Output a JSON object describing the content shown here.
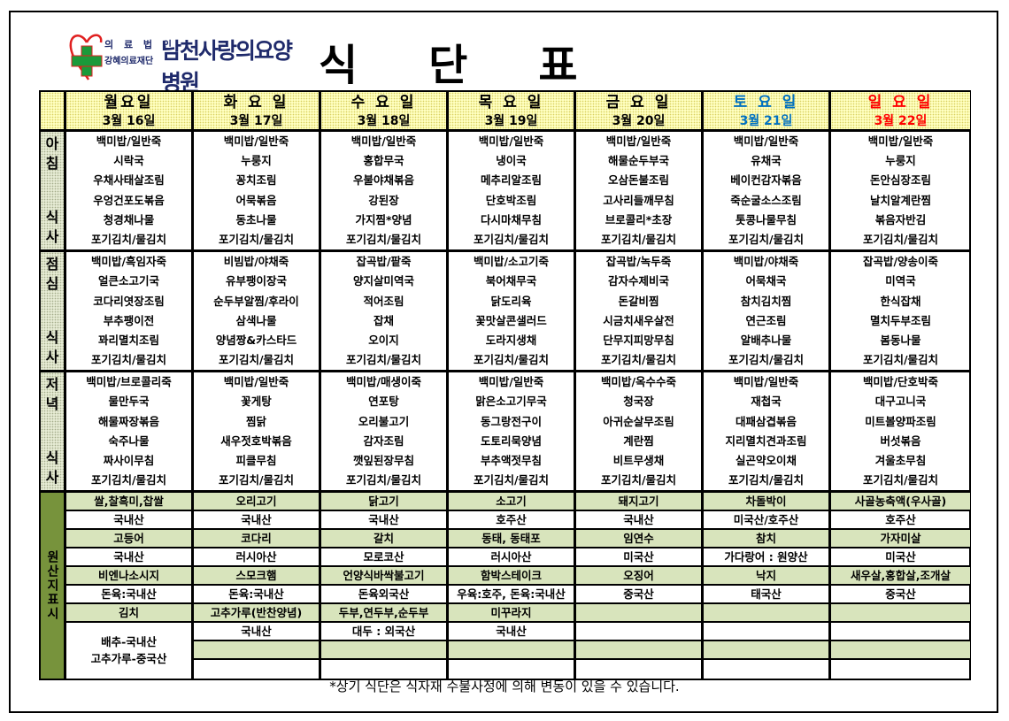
{
  "logo": {
    "org_line1": "의 료 법 인",
    "org_line2": "강혜의료재단",
    "hospital": "남천사랑의요양병원",
    "heart_color": "#e02020",
    "cross_color": "#1a9a3a"
  },
  "title": [
    "식",
    "단",
    "표"
  ],
  "colors": {
    "saturday": "#0070c0",
    "sunday": "#ff0000",
    "origin_label_bg": "#77933c",
    "origin_item_bg": "#d8e4bc",
    "header_bg": "#ffffc0"
  },
  "days": [
    {
      "name": "월요일",
      "date": "3월 16일",
      "color": "#000000"
    },
    {
      "name": "화 요 일",
      "date": "3월 17일",
      "color": "#000000"
    },
    {
      "name": "수 요 일",
      "date": "3월 18일",
      "color": "#000000"
    },
    {
      "name": "목 요 일",
      "date": "3월 19일",
      "color": "#000000"
    },
    {
      "name": "금 요 일",
      "date": "3월 20일",
      "color": "#000000"
    },
    {
      "name": "토 요 일",
      "date": "3월 21일",
      "color": "#0070c0"
    },
    {
      "name": "일 요 일",
      "date": "3월 22일",
      "color": "#ff0000"
    }
  ],
  "meals": [
    {
      "label": [
        "아",
        "침",
        "식",
        "사"
      ],
      "menu": [
        [
          "백미밥/일반죽",
          "시락국",
          "우채사태살조림",
          "우엉건포도볶음",
          "청경채나물",
          "포기김치/물김치"
        ],
        [
          "백미밥/일반죽",
          "누룽지",
          "꽁치조림",
          "어묵볶음",
          "동초나물",
          "포기김치/물김치"
        ],
        [
          "백미밥/일반죽",
          "홍합무국",
          "우불야채볶음",
          "강된장",
          "가지찜*양념",
          "포기김치/물김치"
        ],
        [
          "백미밥/일반죽",
          "냉이국",
          "메추리알조림",
          "단호박조림",
          "다시마채무침",
          "포기김치/물김치"
        ],
        [
          "백미밥/일반죽",
          "해물순두부국",
          "오삼돈불조림",
          "고사리들깨무침",
          "브로콜리*초장",
          "포기김치/물김치"
        ],
        [
          "백미밥/일반죽",
          "유채국",
          "베이컨감자볶음",
          "죽순굴소스조림",
          "톳콩나물무침",
          "포기김치/물김치"
        ],
        [
          "백미밥/일반죽",
          "누룽지",
          "돈안심장조림",
          "날치알계란찜",
          "볶음자반김",
          "포기김치/물김치"
        ]
      ]
    },
    {
      "label": [
        "점",
        "심",
        "식",
        "사"
      ],
      "menu": [
        [
          "백미밥/흑임자죽",
          "얼큰소고기국",
          "코다리엿장조림",
          "부추팽이전",
          "꽈리멸치조림",
          "포기김치/물김치"
        ],
        [
          "비빔밥/야채죽",
          "유부팽이장국",
          "순두부알찜/후라이",
          "삼색나물",
          "양념짱&카스타드",
          "포기김치/물김치"
        ],
        [
          "잡곡밥/팥죽",
          "양지살미역국",
          "적어조림",
          "잡채",
          "오이지",
          "포기김치/물김치"
        ],
        [
          "백미밥/소고기죽",
          "북어채무국",
          "닭도리육",
          "꽃맛살콘샐러드",
          "도라지생채",
          "포기김치/물김치"
        ],
        [
          "잡곡밥/녹두죽",
          "감자수제비국",
          "돈갈비찜",
          "시금치새우살전",
          "단무지피망무침",
          "포기김치/물김치"
        ],
        [
          "백미밥/야채죽",
          "어묵채국",
          "참치김치찜",
          "연근조림",
          "알배추나물",
          "포기김치/물김치"
        ],
        [
          "잡곡밥/양송이죽",
          "미역국",
          "한식잡채",
          "멸치두부조림",
          "봄동나물",
          "포기김치/물김치"
        ]
      ]
    },
    {
      "label": [
        "저",
        "녁",
        "식",
        "사"
      ],
      "menu": [
        [
          "백미밥/브로콜리죽",
          "물만두국",
          "해물짜장볶음",
          "숙주나물",
          "짜사이무침",
          "포기김치/물김치"
        ],
        [
          "백미밥/일반죽",
          "꽃게탕",
          "찜닭",
          "새우젓호박볶음",
          "피클무침",
          "포기김치/물김치"
        ],
        [
          "백미밥/매생이죽",
          "연포탕",
          "오리불고기",
          "감자조림",
          "깻잎된장무침",
          "포기김치/물김치"
        ],
        [
          "백미밥/일반죽",
          "맑은소고기무국",
          "동그랑전구이",
          "도토리묵양념",
          "부추액젓무침",
          "포기김치/물김치"
        ],
        [
          "백미밥/옥수수죽",
          "청국장",
          "아귀순살무조림",
          "계란찜",
          "비트무생채",
          "포기김치/물김치"
        ],
        [
          "백미밥/일반죽",
          "재첩국",
          "대패삼겹볶음",
          "지리멸치견과조림",
          "실곤약오이채",
          "포기김치/물김치"
        ],
        [
          "백미밥/단호박죽",
          "대구고니국",
          "미트볼양파조림",
          "버섯볶음",
          "겨울초무침",
          "포기김치/물김치"
        ]
      ]
    }
  ],
  "origin": {
    "label": "원산지표시",
    "columns": [
      {
        "pairs": [
          [
            "쌀,찰흑미,찹쌀",
            "국내산"
          ],
          [
            "고등어",
            "국내산"
          ],
          [
            "비엔나소시지",
            "돈육:국내산"
          ]
        ],
        "last_item": "김치",
        "last_origin": [
          "배추-국내산",
          "고추가루-중국산"
        ]
      },
      {
        "pairs": [
          [
            "오리고기",
            "국내산"
          ],
          [
            "코다리",
            "러시아산"
          ],
          [
            "스모크햄",
            "돈육:국내산"
          ],
          [
            "고추가루(반찬양념)",
            "국내산"
          ]
        ]
      },
      {
        "pairs": [
          [
            "닭고기",
            "국내산"
          ],
          [
            "갈치",
            "모로코산"
          ],
          [
            "언양식바싹불고기",
            "돈육외국산"
          ],
          [
            "두부,연두부,순두부",
            "대두 : 외국산"
          ]
        ]
      },
      {
        "pairs": [
          [
            "소고기",
            "호주산"
          ],
          [
            "동태, 동태포",
            "러시아산"
          ],
          [
            "함박스테이크",
            "우육:호주, 돈육:국내산"
          ],
          [
            "미꾸라지",
            "국내산"
          ]
        ]
      },
      {
        "pairs": [
          [
            "돼지고기",
            "국내산"
          ],
          [
            "임연수",
            "미국산"
          ],
          [
            "오징어",
            "중국산"
          ],
          [
            "",
            ""
          ]
        ]
      },
      {
        "pairs": [
          [
            "차돌박이",
            "미국산/호주산"
          ],
          [
            "참치",
            "가다랑어 : 원양산"
          ],
          [
            "낙지",
            "태국산"
          ],
          [
            "",
            ""
          ]
        ]
      },
      {
        "pairs": [
          [
            "사골농축액(우사골)",
            "호주산"
          ],
          [
            "가자미살",
            "미국산"
          ],
          [
            "새우살,홍합살,조개살",
            "중국산"
          ],
          [
            "",
            ""
          ]
        ]
      }
    ]
  },
  "note": "*상기 식단은 식자재 수불사정에 의해 변동이 있을 수 있습니다."
}
